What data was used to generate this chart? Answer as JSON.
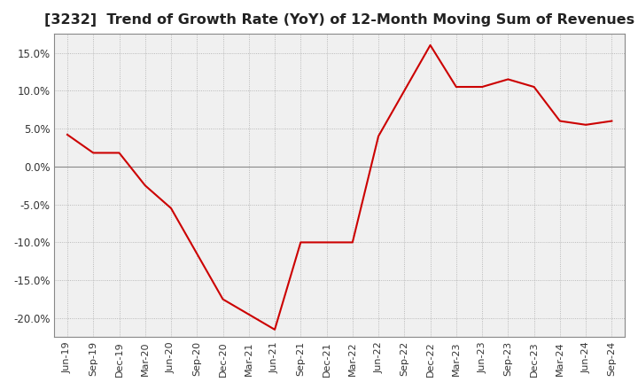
{
  "title": "[3232]  Trend of Growth Rate (YoY) of 12-Month Moving Sum of Revenues",
  "title_fontsize": 11.5,
  "line_color": "#cc0000",
  "background_color": "#ffffff",
  "plot_bg_color": "#f0f0f0",
  "grid_color": "#aaaaaa",
  "zero_line_color": "#888888",
  "ylim": [
    -0.225,
    0.175
  ],
  "yticks": [
    0.15,
    0.1,
    0.05,
    0.0,
    -0.05,
    -0.1,
    -0.15,
    -0.2
  ],
  "x_labels": [
    "Jun-19",
    "Sep-19",
    "Dec-19",
    "Mar-20",
    "Jun-20",
    "Sep-20",
    "Dec-20",
    "Mar-21",
    "Jun-21",
    "Sep-21",
    "Dec-21",
    "Mar-22",
    "Jun-22",
    "Sep-22",
    "Dec-22",
    "Mar-23",
    "Jun-23",
    "Sep-23",
    "Dec-23",
    "Mar-24",
    "Jun-24",
    "Sep-24"
  ],
  "y_values": [
    0.042,
    0.018,
    0.018,
    -0.025,
    -0.055,
    -0.115,
    -0.175,
    -0.195,
    -0.215,
    -0.1,
    -0.1,
    -0.1,
    0.04,
    0.1,
    0.16,
    0.105,
    0.105,
    0.115,
    0.105,
    0.06,
    0.055,
    0.06
  ]
}
